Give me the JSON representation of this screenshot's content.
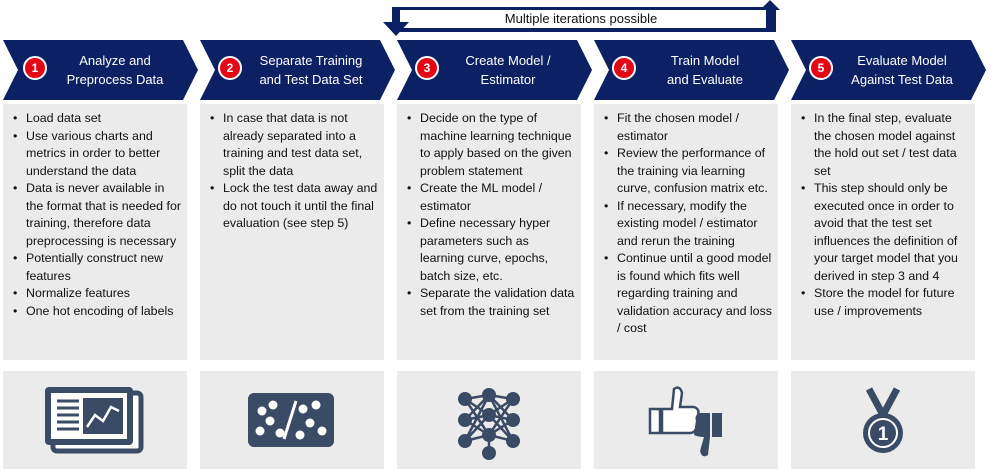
{
  "loop_label": "Multiple iterations possible",
  "colors": {
    "arrow": "#0b2163",
    "badge": "#e30613",
    "panel": "#ebebeb",
    "icon": "#3a4b66"
  },
  "steps": [
    {
      "number": "1",
      "title_line1": "Analyze and",
      "title_line2": "Preprocess Data",
      "bullets": [
        "Load data set",
        "Use various charts and metrics in order to better understand the data",
        "Data is never available in the format that is needed for training, therefore data preprocessing is necessary",
        "Potentially construct new features",
        "Normalize features",
        "One hot encoding of labels"
      ],
      "icon": "chart-document-icon"
    },
    {
      "number": "2",
      "title_line1": "Separate Training",
      "title_line2": "and Test Data Set",
      "bullets": [
        "In case that data is not already separated into a training and test data set, split the data",
        "Lock the test data away and do not touch it until the final evaluation (see step 5)"
      ],
      "icon": "data-split-icon"
    },
    {
      "number": "3",
      "title_line1": "Create Model /",
      "title_line2": "Estimator",
      "bullets": [
        "Decide on the type of machine learning technique to apply based on the given problem statement",
        "Create the ML model / estimator",
        "Define necessary hyper parameters such as learning curve, epochs, batch size, etc.",
        "Separate the validation data set from the training set"
      ],
      "icon": "neural-network-icon"
    },
    {
      "number": "4",
      "title_line1": "Train Model",
      "title_line2": "and Evaluate",
      "bullets": [
        "Fit the chosen model / estimator",
        "Review the performance of the training via learning curve, confusion matrix etc.",
        "If necessary, modify the existing model / estimator and rerun the training",
        "Continue until a good model is found which fits well regarding training and validation accuracy and loss / cost"
      ],
      "icon": "thumbs-up-down-icon"
    },
    {
      "number": "5",
      "title_line1": "Evaluate Model",
      "title_line2": "Against Test Data",
      "bullets": [
        "In the final step, evaluate the chosen model against the hold out set / test data set",
        "This step should only be executed once in order to avoid that the test set influences the definition of your target model that you derived in step 3 and 4",
        "Store the model for future use / improvements"
      ],
      "icon": "medal-icon",
      "medal_number": "1"
    }
  ]
}
